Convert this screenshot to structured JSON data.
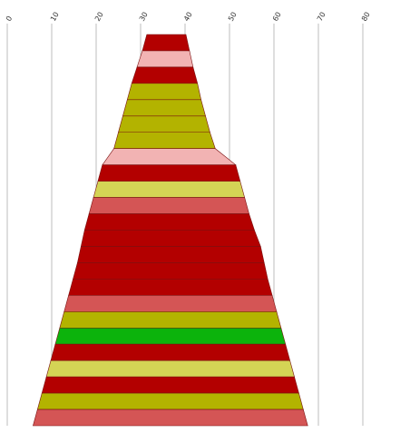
{
  "chart_data": {
    "type": "area",
    "title": "",
    "xlabel": "",
    "ylabel": "",
    "x_axis_position": "top",
    "x_tick_rotation_deg": -60,
    "xlim": [
      0,
      90
    ],
    "x_ticks": [
      0,
      10,
      20,
      30,
      40,
      50,
      60,
      70,
      80
    ],
    "grid": "vertical",
    "legend": "none",
    "rows_top_to_bottom": true,
    "band_boundaries": [
      {
        "left": 31.4,
        "right": 40.2
      },
      {
        "left": 30.4,
        "right": 41.0
      },
      {
        "left": 29.2,
        "right": 41.8
      },
      {
        "left": 28.0,
        "right": 42.8
      },
      {
        "left": 27.0,
        "right": 43.6
      },
      {
        "left": 26.0,
        "right": 44.6
      },
      {
        "left": 25.0,
        "right": 45.6
      },
      {
        "left": 24.0,
        "right": 46.8
      },
      {
        "left": 21.4,
        "right": 51.4
      },
      {
        "left": 20.4,
        "right": 52.4
      },
      {
        "left": 19.4,
        "right": 53.4
      },
      {
        "left": 18.4,
        "right": 54.4
      },
      {
        "left": 17.4,
        "right": 55.6
      },
      {
        "left": 16.6,
        "right": 57.0
      },
      {
        "left": 15.8,
        "right": 57.8
      },
      {
        "left": 14.8,
        "right": 58.6
      },
      {
        "left": 13.8,
        "right": 59.6
      },
      {
        "left": 12.8,
        "right": 60.6
      },
      {
        "left": 11.8,
        "right": 61.6
      },
      {
        "left": 10.8,
        "right": 62.6
      },
      {
        "left": 9.8,
        "right": 63.6
      },
      {
        "left": 8.8,
        "right": 64.6
      },
      {
        "left": 7.8,
        "right": 65.6
      },
      {
        "left": 6.8,
        "right": 66.6
      },
      {
        "left": 5.8,
        "right": 67.6
      }
    ],
    "bands": [
      {
        "top": 0,
        "bottom": 1,
        "color": "#b30000"
      },
      {
        "top": 1,
        "bottom": 2,
        "color": "#f2b3b3"
      },
      {
        "top": 2,
        "bottom": 3,
        "color": "#b30000"
      },
      {
        "top": 3,
        "bottom": 4,
        "color": "#b3b300"
      },
      {
        "top": 4,
        "bottom": 5,
        "color": "#b3b300"
      },
      {
        "top": 5,
        "bottom": 6,
        "color": "#b3b300"
      },
      {
        "top": 6,
        "bottom": 7,
        "color": "#b3b300"
      },
      {
        "top": 7,
        "bottom": 8,
        "color": "#f2b3b3"
      },
      {
        "top": 8,
        "bottom": 9,
        "color": "#b30000"
      },
      {
        "top": 9,
        "bottom": 10,
        "color": "#d4d455"
      },
      {
        "top": 10,
        "bottom": 11,
        "color": "#d45555"
      },
      {
        "top": 11,
        "bottom": 12,
        "color": "#b30000"
      },
      {
        "top": 12,
        "bottom": 13,
        "color": "#b30000"
      },
      {
        "top": 13,
        "bottom": 14,
        "color": "#b30000"
      },
      {
        "top": 14,
        "bottom": 15,
        "color": "#b30000"
      },
      {
        "top": 15,
        "bottom": 16,
        "color": "#b30000"
      },
      {
        "top": 16,
        "bottom": 17,
        "color": "#d45555"
      },
      {
        "top": 17,
        "bottom": 18,
        "color": "#b3b300"
      },
      {
        "top": 18,
        "bottom": 19,
        "color": "#0cb30c"
      },
      {
        "top": 19,
        "bottom": 20,
        "color": "#b30000"
      },
      {
        "top": 20,
        "bottom": 21,
        "color": "#d4d455"
      },
      {
        "top": 21,
        "bottom": 22,
        "color": "#b30000"
      },
      {
        "top": 22,
        "bottom": 23,
        "color": "#b3b300"
      },
      {
        "top": 23,
        "bottom": 24,
        "color": "#d45555"
      }
    ]
  }
}
